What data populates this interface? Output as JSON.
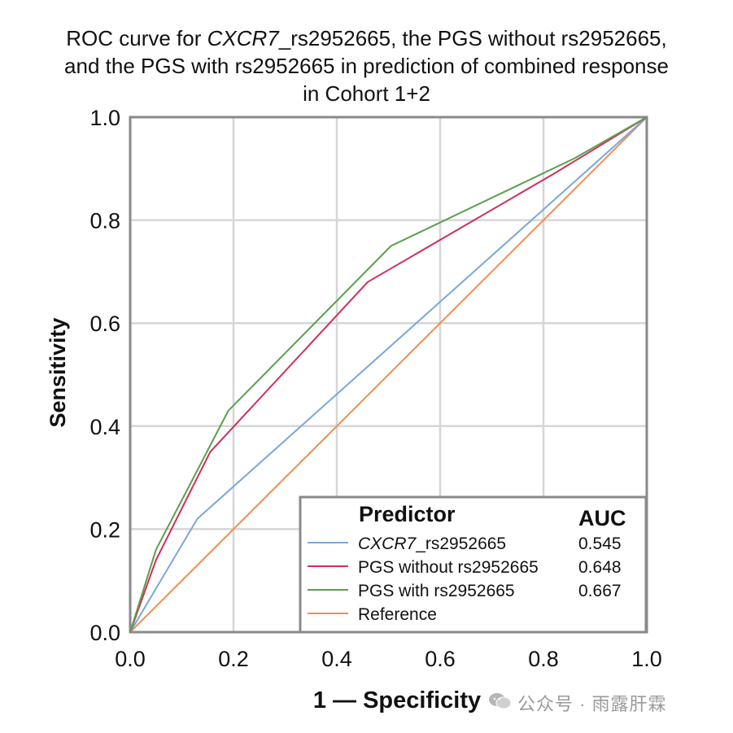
{
  "title": {
    "line1_prefix": "ROC curve for ",
    "line1_italic": "CXCR7",
    "line1_suffix": "_rs2952665, the PGS without rs2952665,",
    "line2": "and the PGS with rs2952665 in prediction of combined response",
    "line3": "in Cohort 1+2"
  },
  "watermark": "公众号 · 雨露肝霖",
  "chart_data": {
    "type": "line",
    "xlabel": "1 — Specificity",
    "ylabel": "Sensitivity",
    "xlim": [
      0,
      1
    ],
    "ylim": [
      0,
      1
    ],
    "x_ticks": [
      "0.0",
      "0.2",
      "0.4",
      "0.6",
      "0.8",
      "1.0"
    ],
    "y_ticks": [
      "0.0",
      "0.2",
      "0.4",
      "0.6",
      "0.8",
      "1.0"
    ],
    "grid": true,
    "legend": {
      "placement": "bottom-right",
      "title": "Predictor",
      "auc_header": "AUC"
    },
    "series": [
      {
        "name_italic": "CXCR7",
        "name": "_rs2952665",
        "auc": "0.545",
        "color": "#7aa8d8",
        "points": [
          [
            0,
            0
          ],
          [
            0.13,
            0.22
          ],
          [
            1,
            1
          ]
        ]
      },
      {
        "name": "PGS without rs2952665",
        "auc": "0.648",
        "color": "#d0305a",
        "points": [
          [
            0,
            0
          ],
          [
            0.05,
            0.14
          ],
          [
            0.155,
            0.35
          ],
          [
            0.46,
            0.68
          ],
          [
            0.82,
            0.89
          ],
          [
            1,
            1
          ]
        ]
      },
      {
        "name": "PGS with rs2952665",
        "auc": "0.667",
        "color": "#5c9e4c",
        "points": [
          [
            0,
            0
          ],
          [
            0.05,
            0.16
          ],
          [
            0.19,
            0.43
          ],
          [
            0.505,
            0.75
          ],
          [
            0.86,
            0.92
          ],
          [
            1,
            1
          ]
        ]
      },
      {
        "name": "Reference",
        "auc": "",
        "color": "#f08e55",
        "points": [
          [
            0,
            0
          ],
          [
            1,
            1
          ]
        ]
      }
    ]
  }
}
